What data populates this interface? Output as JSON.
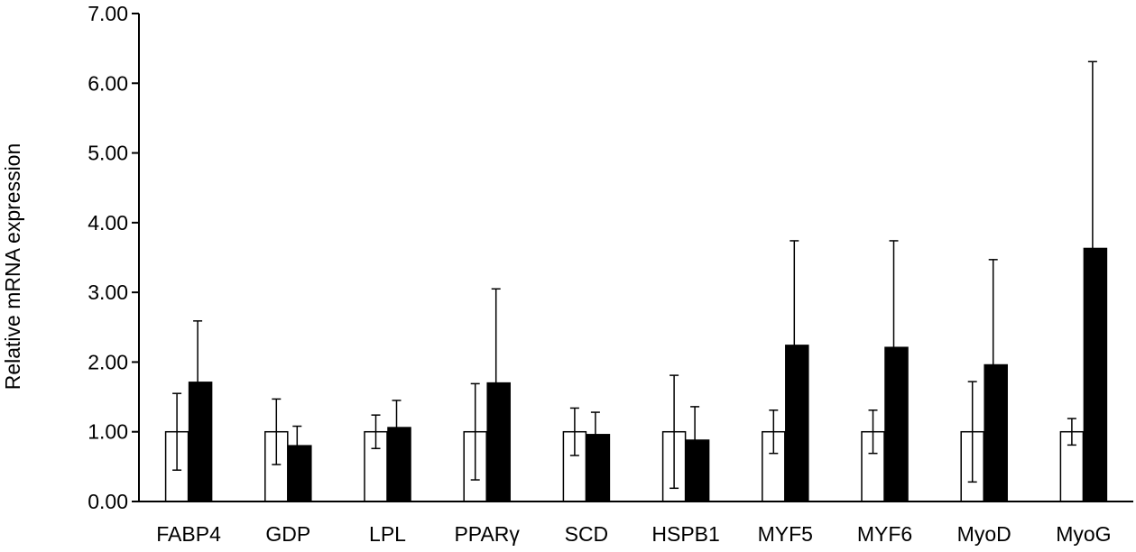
{
  "chart_data": {
    "type": "bar",
    "title": "",
    "xlabel": "",
    "ylabel": "Relative mRNA expression",
    "ylim": [
      0,
      7
    ],
    "yticks": [
      "0.00",
      "1.00",
      "2.00",
      "3.00",
      "4.00",
      "5.00",
      "6.00",
      "7.00"
    ],
    "categories": [
      "FABP4",
      "GDP",
      "LPL",
      "PPARγ",
      "SCD",
      "HSPB1",
      "MYF5",
      "MYF6",
      "MyoD",
      "MyoG"
    ],
    "series": [
      {
        "fill": "#ffffff",
        "values": [
          1.0,
          1.0,
          1.0,
          1.0,
          1.0,
          1.0,
          1.0,
          1.0,
          1.0,
          1.0
        ],
        "error": [
          0.55,
          0.47,
          0.24,
          0.69,
          0.34,
          0.81,
          0.31,
          0.31,
          0.72,
          0.19
        ]
      },
      {
        "fill": "#000000",
        "values": [
          1.71,
          0.8,
          1.06,
          1.7,
          0.96,
          0.88,
          2.24,
          2.21,
          1.96,
          3.63
        ],
        "error": [
          0.88,
          0.28,
          0.39,
          1.35,
          0.32,
          0.48,
          1.5,
          1.53,
          1.51,
          2.68
        ]
      }
    ],
    "grid": false,
    "legend": "none"
  }
}
